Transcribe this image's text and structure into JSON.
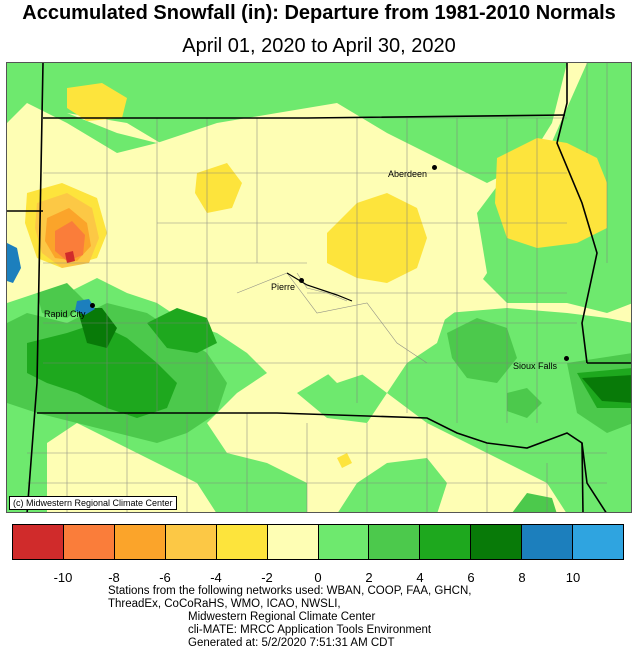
{
  "title": "Accumulated Snowfall (in): Departure from 1981-2010 Normals",
  "subtitle": "April 01, 2020 to April 30, 2020",
  "credit": "(c) Midwestern Regional Climate Center",
  "cities": [
    {
      "name": "Aberdeen",
      "id": "aberdeen"
    },
    {
      "name": "Pierre",
      "id": "pierre"
    },
    {
      "name": "Rapid City",
      "id": "rapid-city"
    },
    {
      "name": "Sioux Falls",
      "id": "sioux-falls"
    }
  ],
  "legend": {
    "colors": [
      "#d02b2b",
      "#fa7d3a",
      "#fba42a",
      "#fcc845",
      "#fde43c",
      "#fefeb4",
      "#6ee96e",
      "#4cc94c",
      "#1ea81e",
      "#087a08",
      "#1c7fbd",
      "#2fa4e0"
    ],
    "ticks": [
      "-10",
      "-8",
      "-6",
      "-4",
      "-2",
      "0",
      "2",
      "4",
      "6",
      "8",
      "10"
    ]
  },
  "stations": {
    "line1": "Stations from the following networks used: WBAN, COOP, FAA, GHCN,",
    "line2": "ThreadEx, CoCoRaHS, WMO, ICAO, NWSLI,",
    "line3": "Midwestern Regional Climate Center",
    "line4": "cli-MATE: MRCC Application Tools Environment",
    "line5": "Generated at: 5/2/2020 7:51:31 AM CDT"
  }
}
